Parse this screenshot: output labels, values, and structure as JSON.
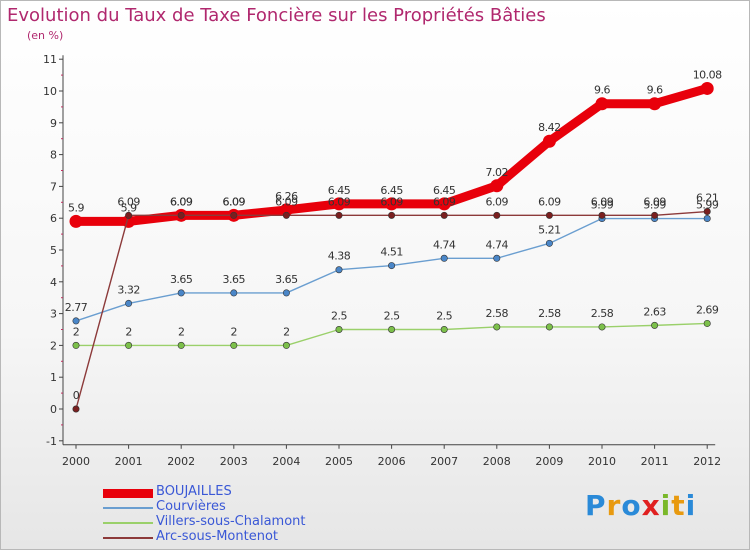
{
  "header": {
    "title": "Evolution du Taux de Taxe Foncière sur les Propriétés Bâties",
    "subtitle": "(en %)"
  },
  "logo": {
    "text": "Proxiti"
  },
  "chart_data": {
    "type": "line",
    "title": "Evolution du Taux de Taxe Foncière sur les Propriétés Bâties",
    "ylabel": "(en %)",
    "x": [
      "2000",
      "2001",
      "2002",
      "2003",
      "2004",
      "2005",
      "2006",
      "2007",
      "2008",
      "2009",
      "2010",
      "2011",
      "2012"
    ],
    "ylim": [
      -1,
      11
    ],
    "yticks": [
      -1,
      0,
      1,
      2,
      3,
      4,
      5,
      6,
      7,
      8,
      9,
      10,
      11
    ],
    "legend_position": "bottom-left",
    "grid": false,
    "series": [
      {
        "name": "BOUJAILLES",
        "color": "#e8000b",
        "values": [
          5.9,
          5.9,
          6.09,
          6.09,
          6.26,
          6.45,
          6.45,
          6.45,
          7.02,
          8.42,
          9.6,
          9.6,
          10.08
        ],
        "labels": [
          "5.9",
          "5.9",
          "6.09",
          "6.09",
          "6.26",
          "6.45",
          "6.45",
          "6.45",
          "7.02",
          "8.42",
          "9.6",
          "9.6",
          "10.08"
        ]
      },
      {
        "name": "Courvières",
        "color": "#6a9ed0",
        "values": [
          2.77,
          3.32,
          3.65,
          3.65,
          3.65,
          4.38,
          4.51,
          4.74,
          4.74,
          5.21,
          5.99,
          5.99,
          5.99
        ],
        "labels": [
          "2.77",
          "3.32",
          "3.65",
          "3.65",
          "3.65",
          "4.38",
          "4.51",
          "4.74",
          "4.74",
          "5.21",
          "5.99",
          "5.99",
          "5.99"
        ]
      },
      {
        "name": "Villers-sous-Chalamont",
        "color": "#9ad06a",
        "values": [
          2,
          2,
          2,
          2,
          2,
          2.5,
          2.5,
          2.5,
          2.58,
          2.58,
          2.58,
          2.63,
          2.69
        ],
        "labels": [
          "2",
          "2",
          "2",
          "2",
          "2",
          "2.5",
          "2.5",
          "2.5",
          "2.58",
          "2.58",
          "2.58",
          "2.63",
          "2.69"
        ]
      },
      {
        "name": "Arc-sous-Montenot",
        "color": "#8c3a3a",
        "values": [
          0,
          6.09,
          6.09,
          6.09,
          6.09,
          6.09,
          6.09,
          6.09,
          6.09,
          6.09,
          6.09,
          6.09,
          6.21
        ],
        "labels": [
          "0",
          "6.09",
          "6.09",
          "6.09",
          "6.09",
          "6.09",
          "6.09",
          "6.09",
          "6.09",
          "6.09",
          "6.09",
          "6.09",
          "6.21"
        ]
      }
    ]
  }
}
